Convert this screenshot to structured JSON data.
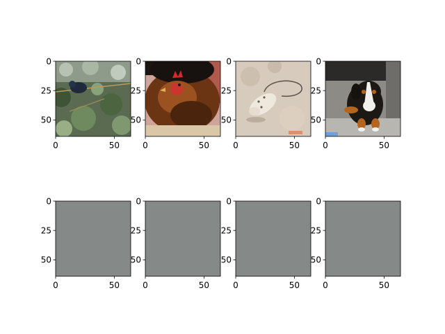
{
  "figure": {
    "background": "#ffffff"
  },
  "chart_data": {
    "type": "image_grid",
    "rows": 2,
    "cols": 4,
    "panels": [
      {
        "row": 0,
        "col": 0,
        "content": "photo",
        "subject": "dark bird perched among green leaves",
        "xlim": [
          0,
          64
        ],
        "ylim": [
          64,
          0
        ],
        "xticks": [
          0,
          50
        ],
        "yticks": [
          0,
          25,
          50
        ]
      },
      {
        "row": 0,
        "col": 1,
        "content": "photo",
        "subject": "brown hen with red comb",
        "xlim": [
          0,
          64
        ],
        "ylim": [
          64,
          0
        ],
        "xticks": [
          0,
          50
        ],
        "yticks": [
          0,
          25,
          50
        ]
      },
      {
        "row": 0,
        "col": 2,
        "content": "photo",
        "subject": "white toy mouse on carpet",
        "xlim": [
          0,
          64
        ],
        "ylim": [
          64,
          0
        ],
        "xticks": [
          0,
          50
        ],
        "yticks": [
          0,
          25,
          50
        ]
      },
      {
        "row": 0,
        "col": 3,
        "content": "photo",
        "subject": "tricolor puppy sitting on floor",
        "xlim": [
          0,
          64
        ],
        "ylim": [
          64,
          0
        ],
        "xticks": [
          0,
          50
        ],
        "yticks": [
          0,
          25,
          50
        ]
      },
      {
        "row": 1,
        "col": 0,
        "content": "uniform",
        "fill": "#858988",
        "xlim": [
          0,
          64
        ],
        "ylim": [
          64,
          0
        ],
        "xticks": [
          0,
          50
        ],
        "yticks": [
          0,
          25,
          50
        ]
      },
      {
        "row": 1,
        "col": 1,
        "content": "uniform",
        "fill": "#858988",
        "xlim": [
          0,
          64
        ],
        "ylim": [
          64,
          0
        ],
        "xticks": [
          0,
          50
        ],
        "yticks": [
          0,
          25,
          50
        ]
      },
      {
        "row": 1,
        "col": 2,
        "content": "uniform",
        "fill": "#858988",
        "xlim": [
          0,
          64
        ],
        "ylim": [
          64,
          0
        ],
        "xticks": [
          0,
          50
        ],
        "yticks": [
          0,
          25,
          50
        ]
      },
      {
        "row": 1,
        "col": 3,
        "content": "uniform",
        "fill": "#858988",
        "xlim": [
          0,
          64
        ],
        "ylim": [
          64,
          0
        ],
        "xticks": [
          0,
          50
        ],
        "yticks": [
          0,
          25,
          50
        ]
      }
    ]
  }
}
